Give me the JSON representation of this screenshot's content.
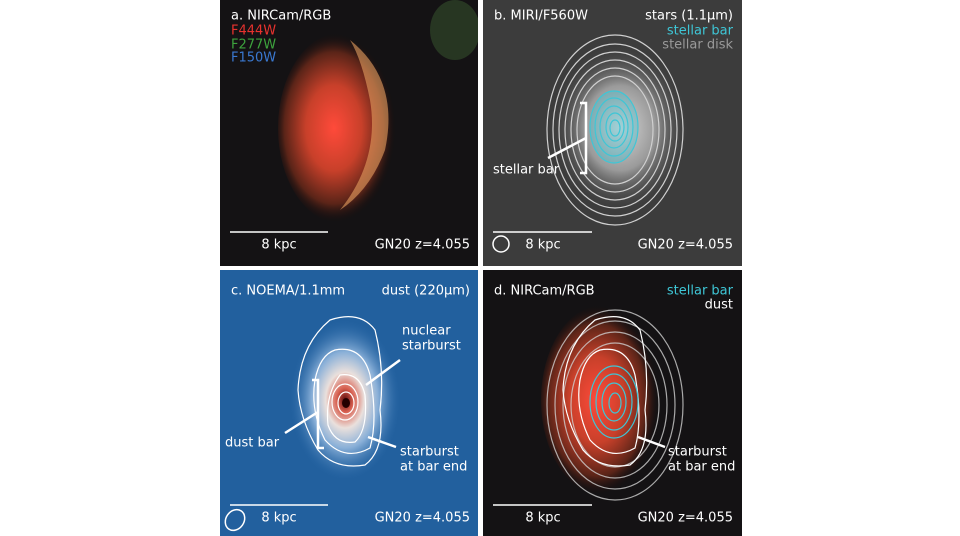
{
  "panels": [
    {
      "title": "a. NIRCam/RGB",
      "legend": [
        {
          "text": "F444W",
          "color": "#e8322e"
        },
        {
          "text": "F277W",
          "color": "#3da33d"
        },
        {
          "text": "F150W",
          "color": "#3a78d0"
        }
      ],
      "scale_bar": "8 kpc",
      "source": "GN20 z=4.055"
    },
    {
      "title": "b. MIRI/F560W",
      "subtitle": "stars (1.1μm)",
      "legend": [
        {
          "text": "stellar bar",
          "color": "#3ec6d6"
        },
        {
          "text": "stellar disk",
          "color": "#9a9a9a"
        }
      ],
      "annotations": [
        [
          "stellar bar"
        ]
      ],
      "scale_bar": "8 kpc",
      "source": "GN20 z=4.055"
    },
    {
      "title": "c. NOEMA/1.1mm",
      "subtitle": "dust (220μm)",
      "annotations": [
        [
          "nuclear",
          "starburst"
        ],
        [
          "dust bar"
        ],
        [
          "starburst",
          "at bar end"
        ]
      ],
      "scale_bar": "8 kpc",
      "source": "GN20 z=4.055"
    },
    {
      "title": "d. NIRCam/RGB",
      "legend": [
        {
          "text": "stellar bar",
          "color": "#3ec6d6"
        },
        {
          "text": "dust",
          "color": "#ffffff"
        }
      ],
      "annotations": [
        [
          "starburst",
          "at bar end"
        ]
      ],
      "scale_bar": "8 kpc",
      "source": "GN20 z=4.055"
    }
  ]
}
